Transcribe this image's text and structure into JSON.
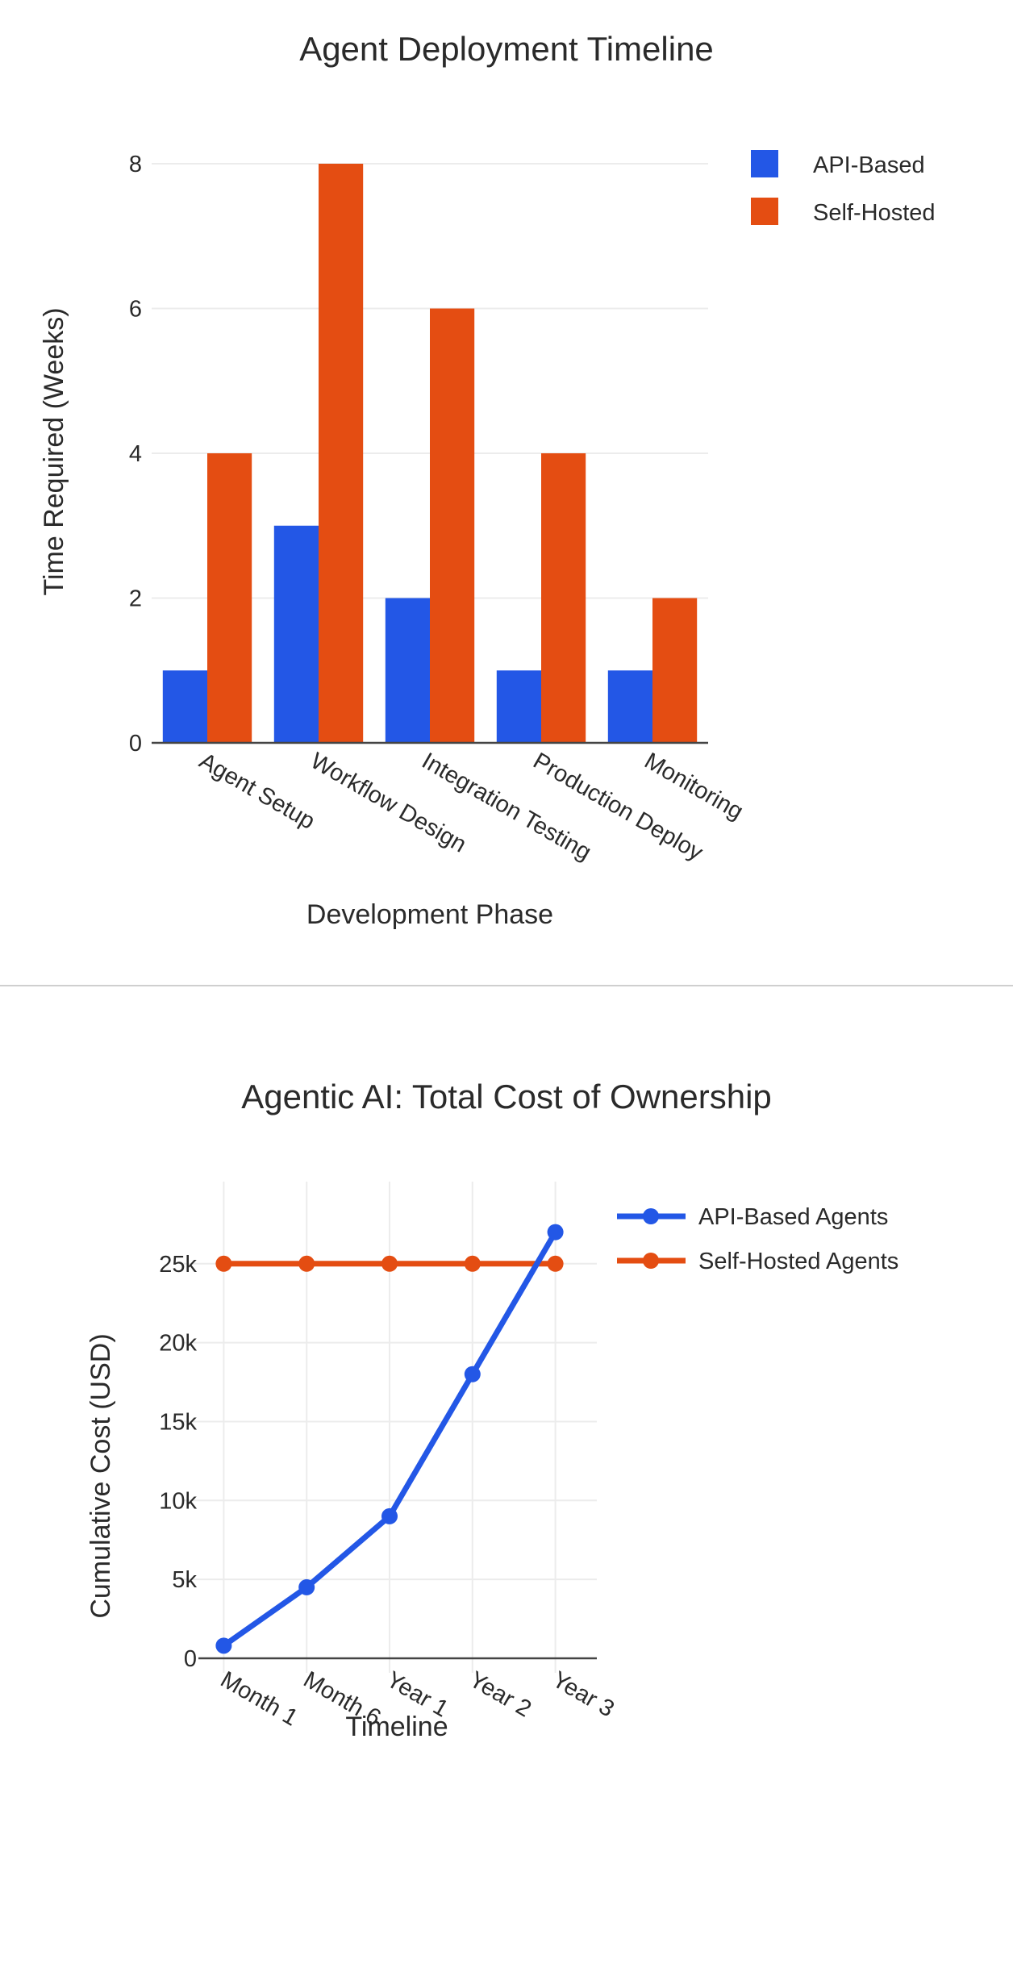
{
  "colors": {
    "api": "#2357e6",
    "self": "#e44d12",
    "grid": "#ececec",
    "axis": "#444444",
    "divider": "#cfcfcf"
  },
  "chart_data": [
    {
      "type": "bar",
      "title": "Agent Deployment Timeline",
      "xlabel": "Development Phase",
      "ylabel": "Time Required (Weeks)",
      "categories": [
        "Agent Setup",
        "Workflow Design",
        "Integration Testing",
        "Production Deploy",
        "Monitoring"
      ],
      "series": [
        {
          "name": "API-Based",
          "values": [
            1,
            3,
            2,
            1,
            1
          ]
        },
        {
          "name": "Self-Hosted",
          "values": [
            4,
            8,
            6,
            4,
            2
          ]
        }
      ],
      "ylim": [
        0,
        8
      ],
      "yticks": [
        0,
        2,
        4,
        6,
        8
      ],
      "ytick_labels": [
        "0",
        "2",
        "4",
        "6",
        "8"
      ],
      "grid": true,
      "legend": "top-right"
    },
    {
      "type": "line",
      "title": "Agentic AI: Total Cost of Ownership",
      "xlabel": "Timeline",
      "ylabel": "Cumulative Cost (USD)",
      "categories": [
        "Month 1",
        "Month 6",
        "Year 1",
        "Year 2",
        "Year 3"
      ],
      "series": [
        {
          "name": "API-Based Agents",
          "values": [
            800,
            4500,
            9000,
            18000,
            27000
          ]
        },
        {
          "name": "Self-Hosted Agents",
          "values": [
            25000,
            25000,
            25000,
            25000,
            25000
          ]
        }
      ],
      "ylim": [
        0,
        28000
      ],
      "yticks": [
        0,
        5000,
        10000,
        15000,
        20000,
        25000
      ],
      "ytick_labels": [
        "0",
        "5k",
        "10k",
        "15k",
        "20k",
        "25k"
      ],
      "grid": true,
      "legend": "top-right"
    }
  ]
}
